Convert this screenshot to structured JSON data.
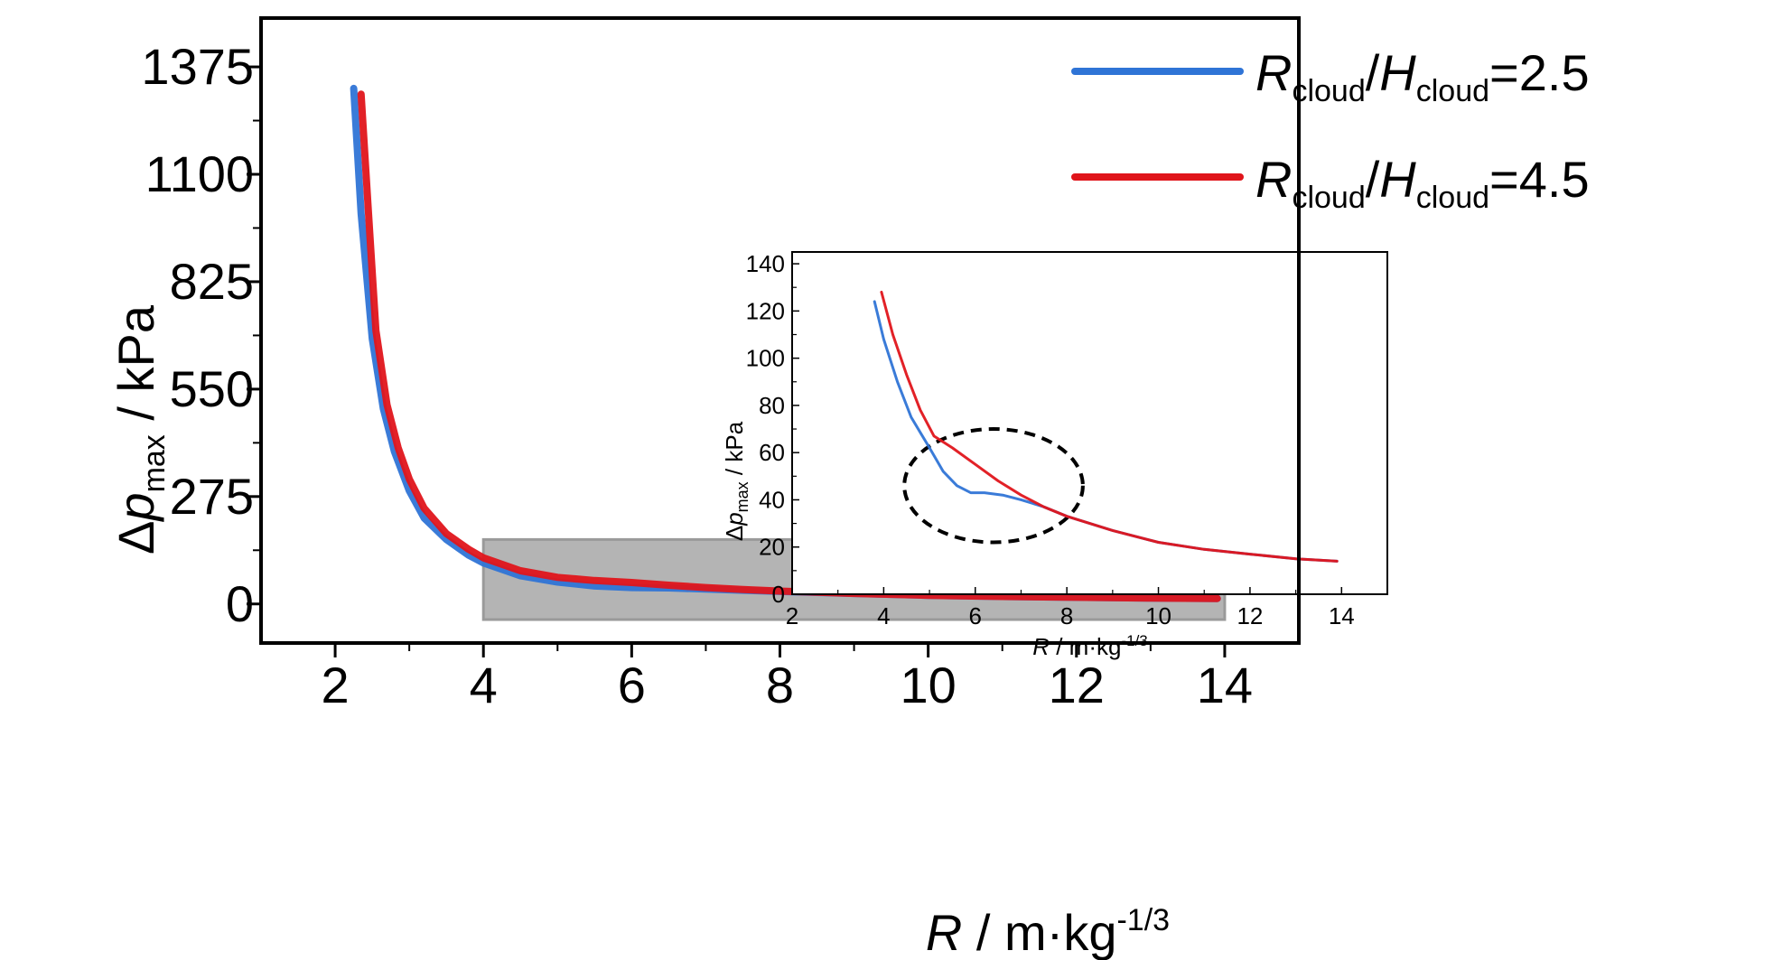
{
  "chart_data": [
    {
      "type": "line",
      "xlabel": {
        "symbol": "R",
        "text": " / m·kg",
        "sup": "-1/3"
      },
      "ylabel": {
        "delta": "Δ",
        "symbol": "p",
        "sub": "max",
        "text": " / kPa"
      },
      "xlim": [
        1,
        15
      ],
      "ylim": [
        -100,
        1500
      ],
      "xticks": [
        2,
        4,
        6,
        8,
        10,
        12,
        14
      ],
      "yticks": [
        0,
        275,
        550,
        825,
        1100,
        1375
      ],
      "grid": false,
      "legend_position": "top-right",
      "highlight_region": {
        "x": [
          4,
          14
        ],
        "y": [
          -40,
          165
        ],
        "color": "#b4b4b4"
      },
      "series": [
        {
          "label_parts": [
            "R",
            "cloud",
            "/",
            "H",
            "cloud",
            "=2.5"
          ],
          "color": "#2f74d6",
          "x": [
            2.25,
            2.35,
            2.5,
            2.65,
            2.8,
            3.0,
            3.2,
            3.5,
            3.8,
            4.0,
            4.5,
            5.0,
            5.5,
            6.0,
            6.5,
            7.0,
            7.5,
            8.0,
            9.0,
            10.0,
            11.0,
            12.0,
            13.0,
            13.9
          ],
          "y": [
            1320,
            1000,
            680,
            500,
            390,
            290,
            220,
            165,
            125,
            105,
            72,
            56,
            46,
            42,
            41,
            38,
            35,
            32,
            27,
            22,
            19,
            17,
            15,
            14
          ]
        },
        {
          "label_parts": [
            "R",
            "cloud",
            "/",
            "H",
            "cloud",
            "=4.5"
          ],
          "color": "#e0151b",
          "x": [
            2.35,
            2.45,
            2.55,
            2.7,
            2.85,
            3.0,
            3.2,
            3.5,
            3.8,
            4.0,
            4.5,
            5.0,
            5.5,
            6.0,
            6.5,
            7.0,
            7.5,
            8.0,
            9.0,
            10.0,
            11.0,
            12.0,
            13.0,
            13.9
          ],
          "y": [
            1305,
            1000,
            700,
            510,
            400,
            320,
            245,
            180,
            140,
            118,
            85,
            68,
            60,
            55,
            48,
            42,
            37,
            33,
            27,
            22,
            19,
            17,
            15,
            14
          ]
        }
      ]
    },
    {
      "type": "line",
      "role": "inset",
      "xlabel": {
        "symbol": "R",
        "text": " / m·kg",
        "sup": "-1/3"
      },
      "ylabel": {
        "delta": "Δ",
        "symbol": "p",
        "sub": "max",
        "text": " / kPa"
      },
      "xlim": [
        2,
        15
      ],
      "ylim": [
        0,
        145
      ],
      "xticks": [
        2,
        4,
        6,
        8,
        10,
        12,
        14
      ],
      "yticks": [
        0,
        20,
        40,
        60,
        80,
        100,
        120,
        140
      ],
      "grid": false,
      "annotation": {
        "shape": "dashed-ellipse",
        "center": [
          6.4,
          46
        ],
        "radius": [
          1.95,
          24
        ]
      },
      "series": [
        {
          "color": "#2f74d6",
          "x": [
            3.8,
            4.0,
            4.3,
            4.6,
            5.0,
            5.3,
            5.6,
            5.9,
            6.2,
            6.6,
            7.0,
            7.5,
            8.0,
            9.0,
            10.0,
            11.0,
            12.0,
            13.0,
            13.9
          ],
          "y": [
            124,
            108,
            90,
            75,
            62,
            52,
            46,
            43,
            43,
            42,
            40,
            37,
            33,
            27,
            22,
            19,
            17,
            15,
            14
          ]
        },
        {
          "color": "#e0151b",
          "x": [
            3.95,
            4.2,
            4.5,
            4.8,
            5.1,
            5.5,
            6.0,
            6.5,
            7.0,
            7.5,
            8.0,
            9.0,
            10.0,
            11.0,
            12.0,
            13.0,
            13.9
          ],
          "y": [
            128,
            110,
            93,
            78,
            67,
            62,
            55,
            48,
            42,
            37,
            33,
            27,
            22,
            19,
            17,
            15,
            14
          ]
        }
      ]
    }
  ]
}
